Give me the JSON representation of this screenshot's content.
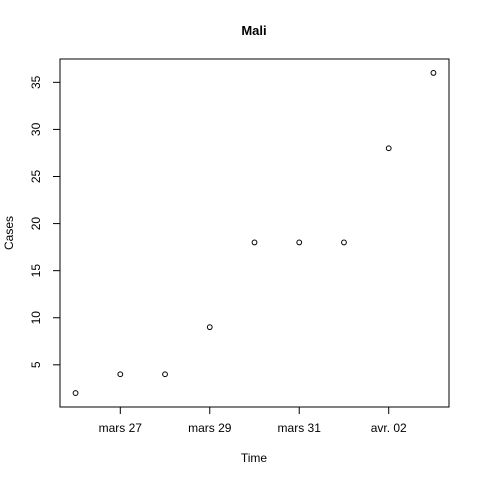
{
  "chart_data": {
    "type": "scatter",
    "title": "Mali",
    "xlabel": "Time",
    "ylabel": "Cases",
    "x": [
      "2020-03-26",
      "2020-03-27",
      "2020-03-28",
      "2020-03-29",
      "2020-03-30",
      "2020-03-31",
      "2020-04-01",
      "2020-04-02",
      "2020-04-03"
    ],
    "values": [
      2,
      4,
      4,
      9,
      18,
      18,
      18,
      28,
      36
    ],
    "xlim": [
      "2020-03-26",
      "2020-04-03"
    ],
    "ylim": [
      2,
      36
    ],
    "x_ticks": [
      {
        "date": "2020-03-27",
        "label": "mars 27"
      },
      {
        "date": "2020-03-29",
        "label": "mars 29"
      },
      {
        "date": "2020-03-31",
        "label": "mars 31"
      },
      {
        "date": "2020-04-02",
        "label": "avr. 02"
      }
    ],
    "y_ticks": [
      5,
      10,
      15,
      20,
      25,
      30,
      35
    ],
    "grid": false,
    "marker": "open-circle"
  }
}
